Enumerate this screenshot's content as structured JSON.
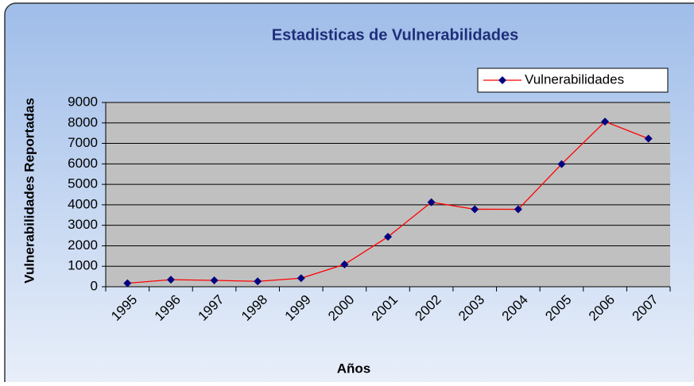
{
  "chart_data": {
    "type": "line",
    "title": "Estadisticas de Vulnerabilidades",
    "x_label": "Años",
    "y_label": "Vulnerabilidades Reportadas",
    "categories": [
      "1995",
      "1996",
      "1997",
      "1998",
      "1999",
      "2000",
      "2001",
      "2002",
      "2003",
      "2004",
      "2005",
      "2006",
      "2007"
    ],
    "series": [
      {
        "name": "Vulnerabilidades",
        "color": "#ff0000",
        "marker_color": "#000080",
        "values": [
          171,
          345,
          311,
          262,
          417,
          1090,
          2437,
          4129,
          3784,
          3780,
          5990,
          8064,
          7236
        ]
      }
    ],
    "ylim": [
      0,
      9000
    ],
    "yticks": [
      0,
      1000,
      2000,
      3000,
      4000,
      5000,
      6000,
      7000,
      8000,
      9000
    ],
    "grid": true,
    "legend": "top-right"
  }
}
